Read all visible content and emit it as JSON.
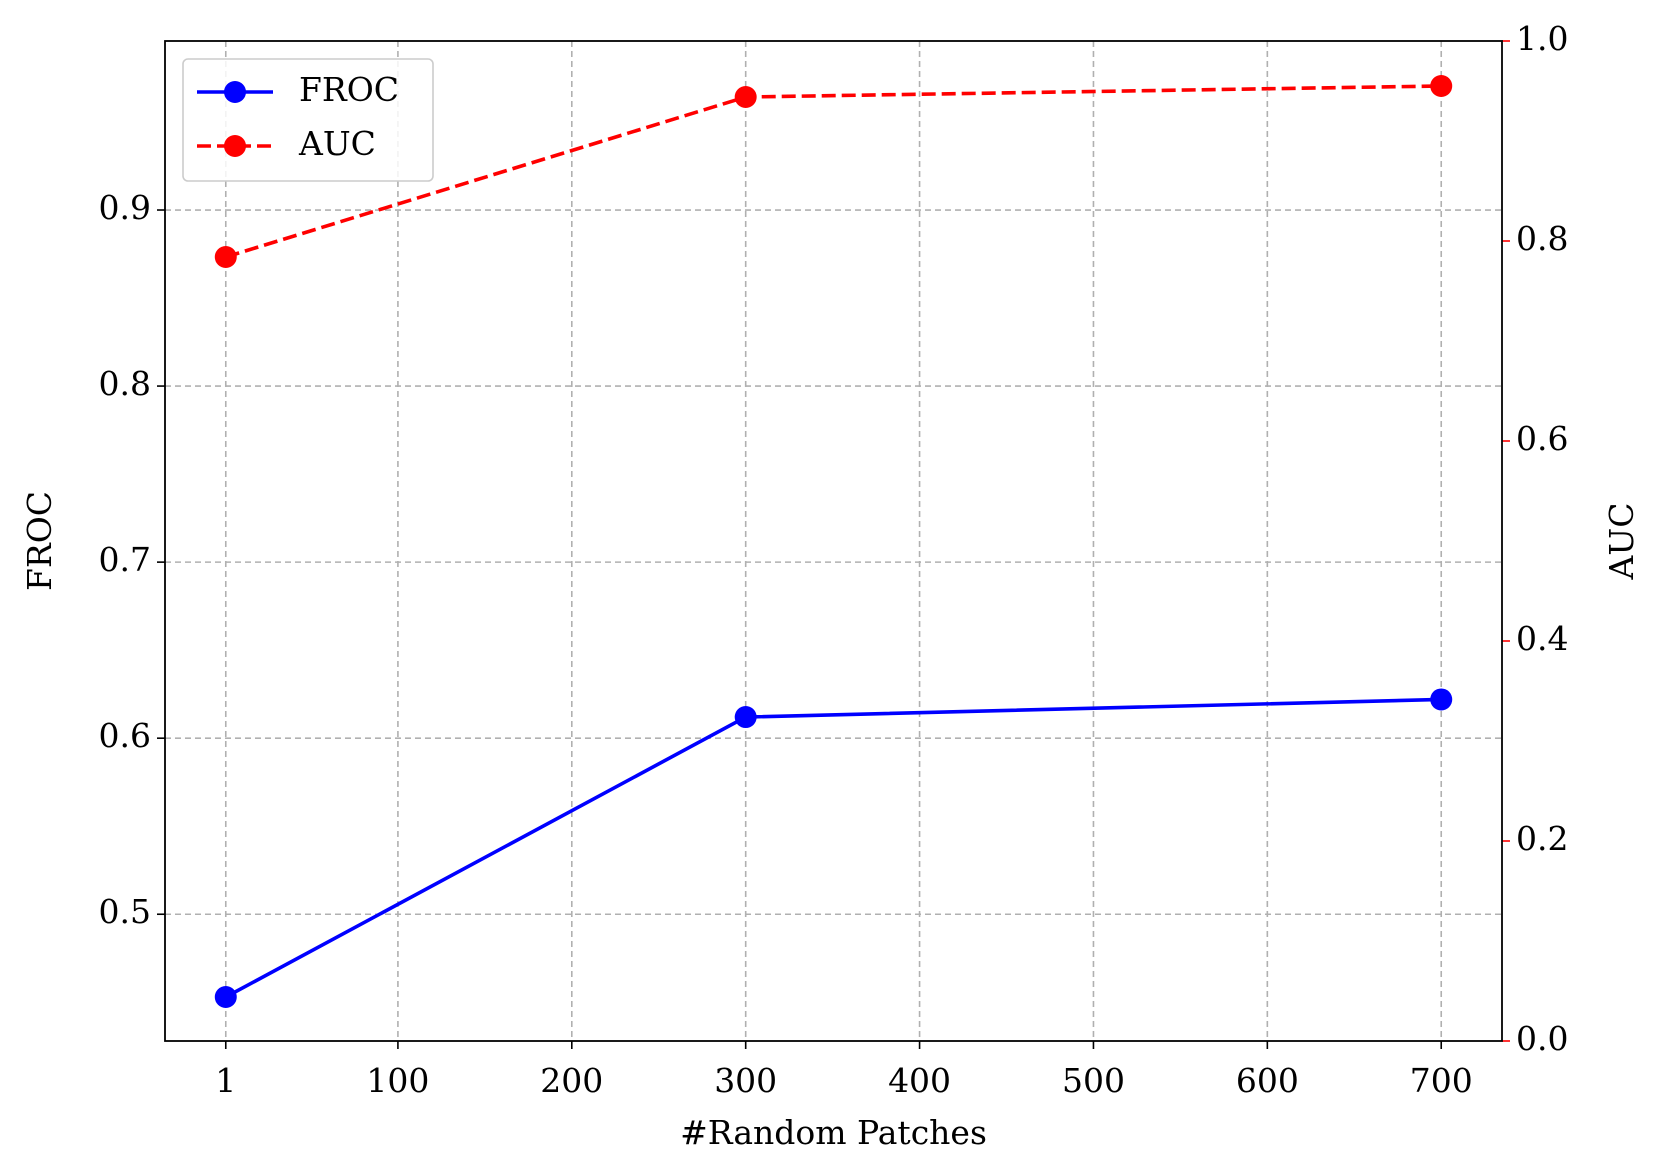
{
  "chart_data": {
    "type": "line",
    "x_label": "#Random Patches",
    "y_label": "FROC",
    "y2_label": "AUC",
    "x": [
      1,
      300,
      700
    ],
    "series": [
      {
        "name": "FROC",
        "color": "#0000ff",
        "linestyle": "solid",
        "marker": "o",
        "values": [
          0.453,
          0.612,
          0.622
        ]
      },
      {
        "name": "AUC",
        "color": "#ff0000",
        "linestyle": "dashed",
        "marker": "o",
        "axis": "y2",
        "values": [
          0.784,
          0.944,
          0.955
        ]
      }
    ],
    "xlim": [
      -33.95,
      734.95
    ],
    "xticks": [
      1,
      100,
      200,
      300,
      400,
      500,
      600,
      700
    ],
    "ylim": [
      0.428,
      0.996
    ],
    "yticks": [
      0.5,
      0.6,
      0.7,
      0.8,
      0.9
    ],
    "y2lim": [
      0,
      1
    ],
    "y2ticks": [
      {
        "value": 0,
        "label": "0.0"
      },
      0.2,
      0.4,
      0.6,
      0.8,
      {
        "value": 1,
        "label": "1.0"
      }
    ],
    "grid": true,
    "legend": "upper left"
  }
}
